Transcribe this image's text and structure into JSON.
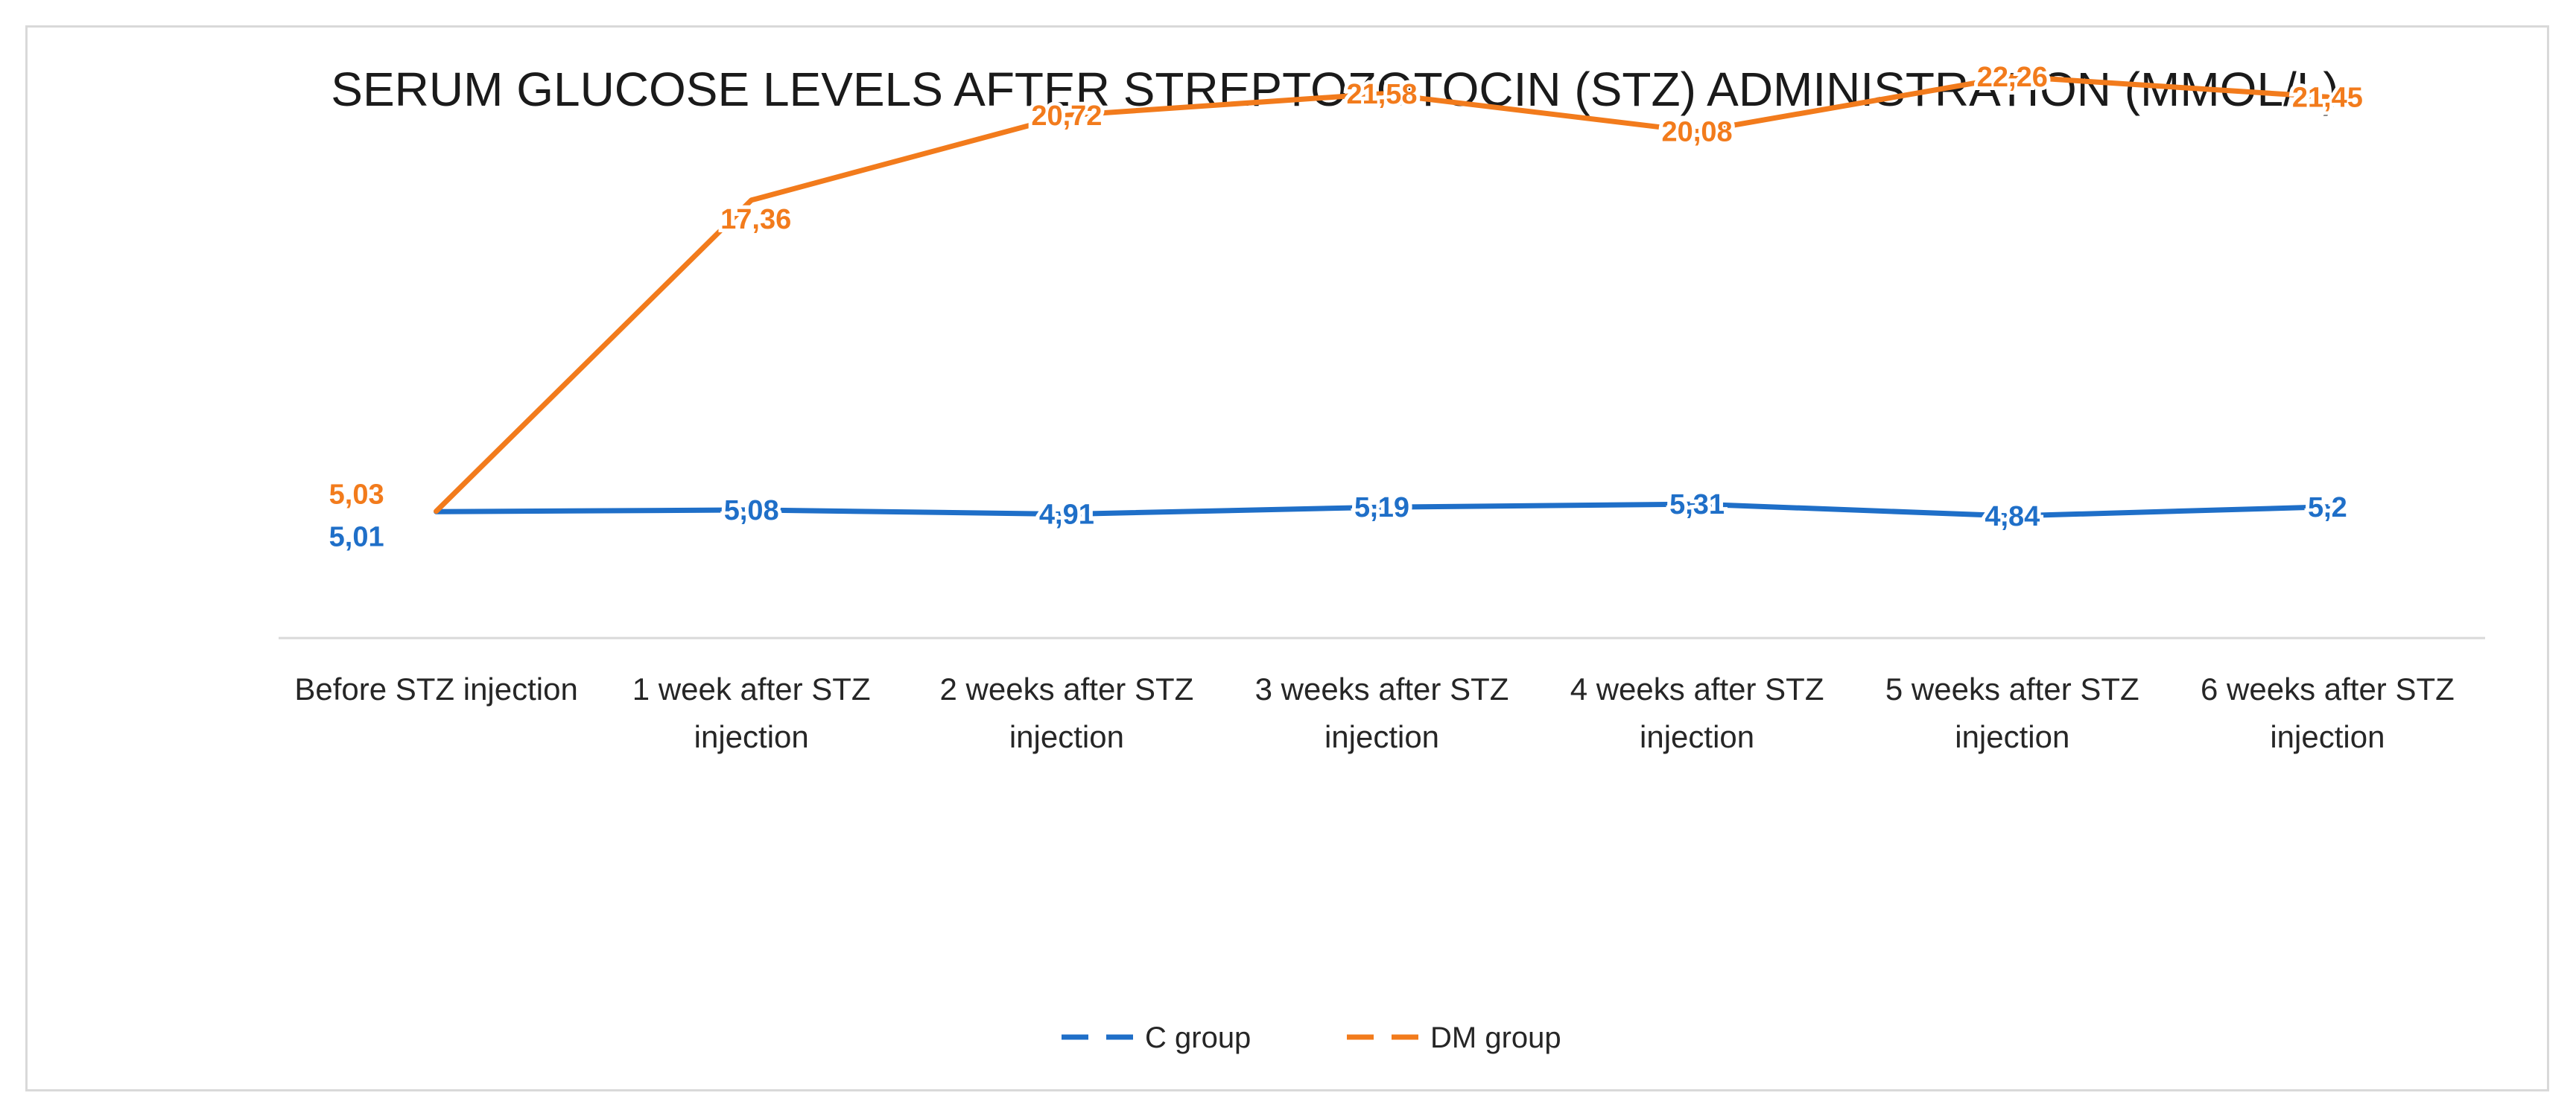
{
  "chart_data": {
    "type": "line",
    "title": "SERUM GLUCOSE LEVELS AFTER STREPTOZOTOCIN (STZ) ADMINISTRATION (MMOL/L)",
    "xlabel": "",
    "ylabel": "",
    "categories": [
      [
        "Before STZ injection"
      ],
      [
        "1 week after STZ",
        "injection"
      ],
      [
        "2 weeks after STZ",
        "injection"
      ],
      [
        "3 weeks after STZ",
        "injection"
      ],
      [
        "4 weeks after STZ",
        "injection"
      ],
      [
        "5 weeks after STZ",
        "injection"
      ],
      [
        "6 weeks after STZ",
        "injection"
      ]
    ],
    "series": [
      {
        "name": "C group",
        "color": "#1f6fc8",
        "values": [
          5.01,
          5.08,
          4.91,
          5.19,
          5.31,
          4.84,
          5.2
        ],
        "labels": [
          "5,01",
          "5,08",
          "4,91",
          "5,19",
          "5,31",
          "4,84",
          "5,2"
        ]
      },
      {
        "name": "DM group",
        "color": "#f27b1c",
        "values": [
          5.03,
          17.36,
          20.72,
          21.58,
          20.08,
          22.26,
          21.45
        ],
        "labels": [
          "5,03",
          "17,36",
          "20,72",
          "21,58",
          "20,08",
          "22,26",
          "21,45"
        ]
      }
    ],
    "ylim": [
      0,
      25
    ],
    "grid": false,
    "legend": "bottom-center"
  }
}
